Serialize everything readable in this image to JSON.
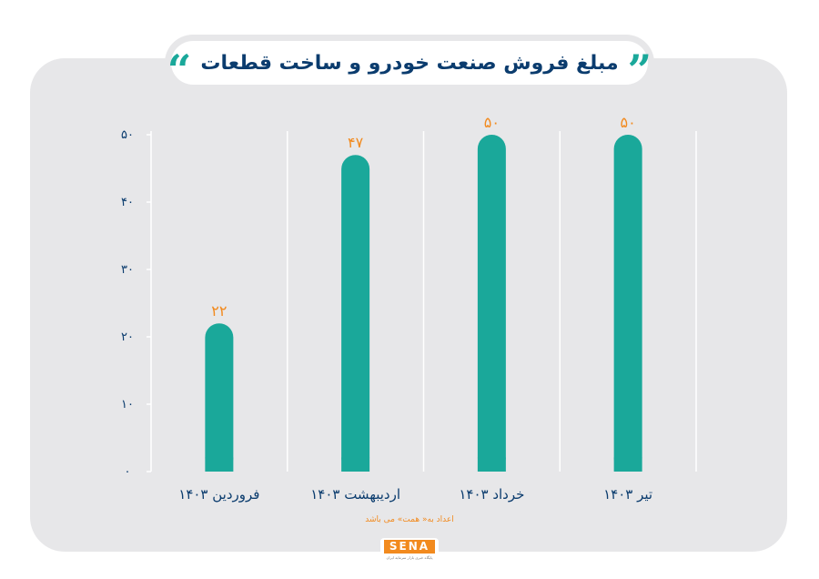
{
  "title": "مبلغ فروش صنعت خودرو و ساخت قطعات",
  "quote_left": "“",
  "quote_right": "”",
  "note": "اعداد به« همت» می باشد",
  "logo": {
    "word": "SENA",
    "tagline": "پایگاه خبری بازار سرمایه ایران"
  },
  "colors": {
    "bar": "#1aa89a",
    "value_label": "#f28a1e",
    "axis_text": "#0b3c6e",
    "grid": "#ffffff",
    "panel": "#e7e7e9"
  },
  "chart_data": {
    "type": "bar",
    "categories": [
      "فروردین ۱۴۰۳",
      "اردیبهشت ۱۴۰۳",
      "خرداد ۱۴۰۳",
      "تیر ۱۴۰۳"
    ],
    "values": [
      22,
      47,
      50,
      50
    ],
    "value_labels": [
      "۲۲",
      "۴۷",
      "۵۰",
      "۵۰"
    ],
    "yticks": [
      0,
      10,
      20,
      30,
      40,
      50
    ],
    "ytick_labels": [
      "۰",
      "۱۰",
      "۲۰",
      "۳۰",
      "۴۰",
      "۵۰"
    ],
    "ylim": [
      0,
      50
    ],
    "grid": "vertical-separators",
    "title": "مبلغ فروش صنعت خودرو و ساخت قطعات"
  }
}
